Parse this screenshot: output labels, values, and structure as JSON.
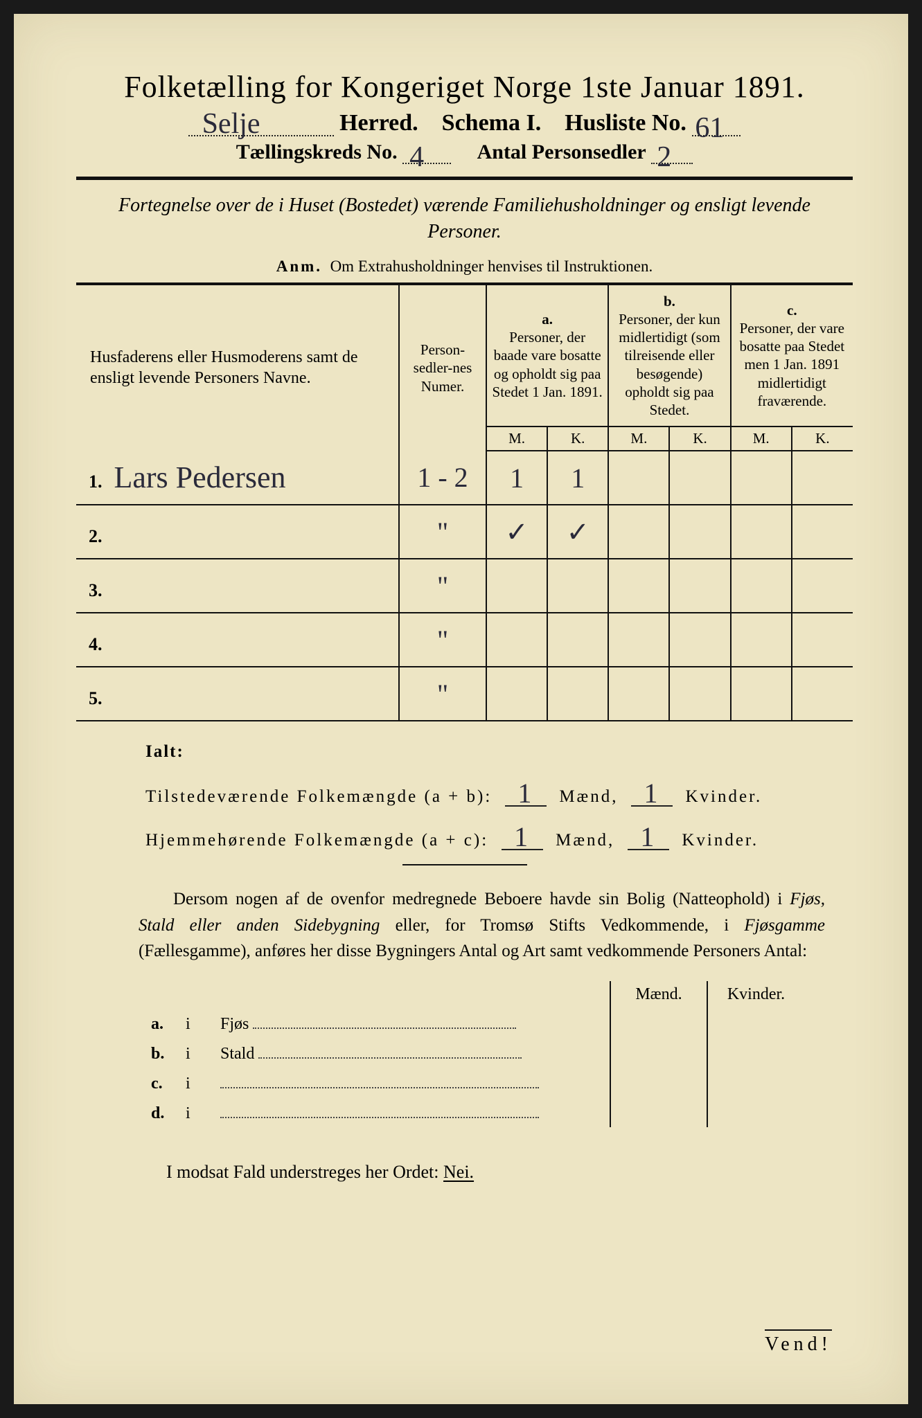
{
  "colors": {
    "page_bg": "#ede5c4",
    "ink": "#111111",
    "handwriting": "#2a2a3a",
    "frame_bg": "#1a1a1a"
  },
  "typography": {
    "title_fontsize_pt": 33,
    "body_fontsize_pt": 19,
    "handwriting_fontsize_pt": 32,
    "font_family_print": "Times New Roman",
    "font_family_handwriting": "Brush Script MT"
  },
  "header": {
    "title": "Folketælling for Kongeriget Norge 1ste Januar 1891.",
    "herred_label": "Herred.",
    "herred_value": "Selje",
    "schema_label": "Schema I.",
    "husliste_label": "Husliste No.",
    "husliste_value": "61",
    "kreds_label": "Tællingskreds No.",
    "kreds_value": "4",
    "antal_label": "Antal Personsedler",
    "antal_value": "2"
  },
  "intro": {
    "text": "Fortegnelse over de i Huset (Bostedet) værende Familiehusholdninger og ensligt levende Personer.",
    "anm_label": "Anm.",
    "anm_text": "Om Extrahusholdninger henvises til Instruktionen."
  },
  "table": {
    "col_name_header": "Husfaderens eller Husmoderens samt de ensligt levende Personers Navne.",
    "col_num_header": "Person-sedler-nes Numer.",
    "col_a_label": "a.",
    "col_a_header": "Personer, der baade vare bosatte og opholdt sig paa Stedet 1 Jan. 1891.",
    "col_b_label": "b.",
    "col_b_header": "Personer, der kun midlertidigt (som tilreisende eller besøgende) opholdt sig paa Stedet.",
    "col_c_label": "c.",
    "col_c_header": "Personer, der vare bosatte paa Stedet men 1 Jan. 1891 midlertidigt fraværende.",
    "sub_m": "M.",
    "sub_k": "K.",
    "rows": [
      {
        "n": "1.",
        "name": "Lars Pedersen",
        "num": "1 - 2",
        "a_m": "1",
        "a_k": "1",
        "b_m": "",
        "b_k": "",
        "c_m": "",
        "c_k": ""
      },
      {
        "n": "2.",
        "name": "",
        "num": "\"",
        "a_m": "✓",
        "a_k": "✓",
        "b_m": "",
        "b_k": "",
        "c_m": "",
        "c_k": ""
      },
      {
        "n": "3.",
        "name": "",
        "num": "\"",
        "a_m": "",
        "a_k": "",
        "b_m": "",
        "b_k": "",
        "c_m": "",
        "c_k": ""
      },
      {
        "n": "4.",
        "name": "",
        "num": "\"",
        "a_m": "",
        "a_k": "",
        "b_m": "",
        "b_k": "",
        "c_m": "",
        "c_k": ""
      },
      {
        "n": "5.",
        "name": "",
        "num": "\"",
        "a_m": "",
        "a_k": "",
        "b_m": "",
        "b_k": "",
        "c_m": "",
        "c_k": ""
      }
    ]
  },
  "totals": {
    "ialt_label": "Ialt:",
    "row1_label": "Tilstedeværende Folkemængde (a + b):",
    "row1_m": "1",
    "row1_k": "1",
    "row2_label": "Hjemmehørende Folkemængde (a + c):",
    "row2_m": "1",
    "row2_k": "1",
    "maend": "Mænd,",
    "kvinder": "Kvinder."
  },
  "paragraph": {
    "text1": "Dersom nogen af de ovenfor medregnede Beboere havde sin Bolig (Natteophold) i ",
    "it1": "Fjøs, Stald eller anden Sidebygning",
    "text2": " eller, for Tromsø Stifts Vedkommende, i ",
    "it2": "Fjøsgamme",
    "text3": " (Fællesgamme), anføres her disse Bygningers Antal og Art samt vedkommende Personers Antal:"
  },
  "sidebuildings": {
    "head_m": "Mænd.",
    "head_k": "Kvinder.",
    "rows": [
      {
        "key": "a.",
        "i": "i",
        "label": "Fjøs"
      },
      {
        "key": "b.",
        "i": "i",
        "label": "Stald"
      },
      {
        "key": "c.",
        "i": "i",
        "label": ""
      },
      {
        "key": "d.",
        "i": "i",
        "label": ""
      }
    ]
  },
  "closing": {
    "text_pre": "I modsat Fald understreges her Ordet: ",
    "nei": "Nei."
  },
  "footer": {
    "vend": "Vend!"
  }
}
